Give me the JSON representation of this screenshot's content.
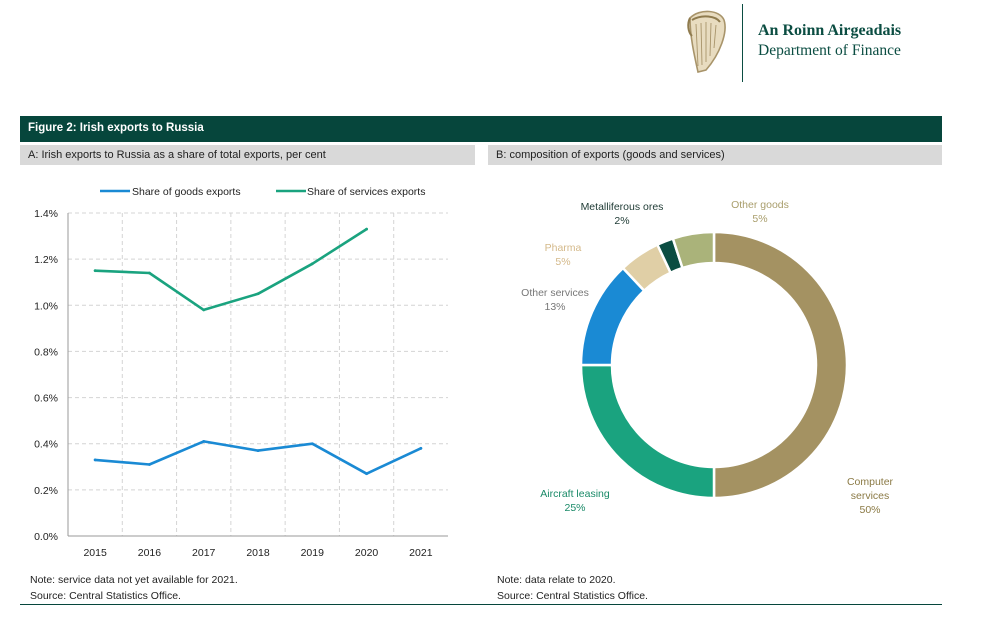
{
  "header": {
    "org_irish": "An Roinn Airgeadais",
    "org_english": "Department of Finance",
    "brand_color": "#0b4d42"
  },
  "figure": {
    "title": "Figure 2: Irish exports to Russia"
  },
  "panel_a": {
    "heading": "A: Irish exports to Russia as a share of total exports, per cent",
    "note": "Note: service data not yet available for 2021.",
    "source": "Source: Central Statistics Office."
  },
  "panel_b": {
    "heading": "B: composition of exports (goods and services)",
    "note": "Note: data relate to 2020.",
    "source": "Source: Central Statistics Office."
  },
  "chart_data": [
    {
      "type": "line",
      "title": "A: Irish exports to Russia as a share of total exports, per cent",
      "categories": [
        "2015",
        "2016",
        "2017",
        "2018",
        "2019",
        "2020",
        "2021"
      ],
      "ylim": [
        0,
        1.4
      ],
      "yticks": [
        0.0,
        0.2,
        0.4,
        0.6,
        0.8,
        1.0,
        1.2,
        1.4
      ],
      "ytick_labels": [
        "0.0%",
        "0.2%",
        "0.4%",
        "0.6%",
        "0.8%",
        "1.0%",
        "1.2%",
        "1.4%"
      ],
      "grid": true,
      "legend": "top",
      "series": [
        {
          "name": "Share of goods exports",
          "color": "#1a8ad4",
          "values": [
            0.33,
            0.31,
            0.41,
            0.37,
            0.4,
            0.27,
            0.38
          ]
        },
        {
          "name": "Share of services exports",
          "color": "#1aa37f",
          "values": [
            1.15,
            1.14,
            0.98,
            1.05,
            1.18,
            1.33,
            null
          ]
        }
      ]
    },
    {
      "type": "pie",
      "donut": true,
      "title": "B: composition of exports (goods and services)",
      "slices": [
        {
          "name": "Computer services",
          "value": 50,
          "label": "50%",
          "color": "#a49262",
          "label_color": "#8b7a45"
        },
        {
          "name": "Aircraft leasing",
          "value": 25,
          "label": "25%",
          "color": "#1aa37f",
          "label_color": "#1a8a68"
        },
        {
          "name": "Other services",
          "value": 13,
          "label": "13%",
          "color": "#1a8ad4",
          "label_color": "#777777"
        },
        {
          "name": "Pharma",
          "value": 5,
          "label": "5%",
          "color": "#e0cfa6",
          "label_color": "#d4b98a"
        },
        {
          "name": "Metalliferous ores",
          "value": 2,
          "label": "2%",
          "color": "#0b4d42",
          "label_color": "#1e3a34"
        },
        {
          "name": "Other goods",
          "value": 5,
          "label": "5%",
          "color": "#aab37a",
          "label_color": "#a99e6c"
        }
      ]
    }
  ]
}
